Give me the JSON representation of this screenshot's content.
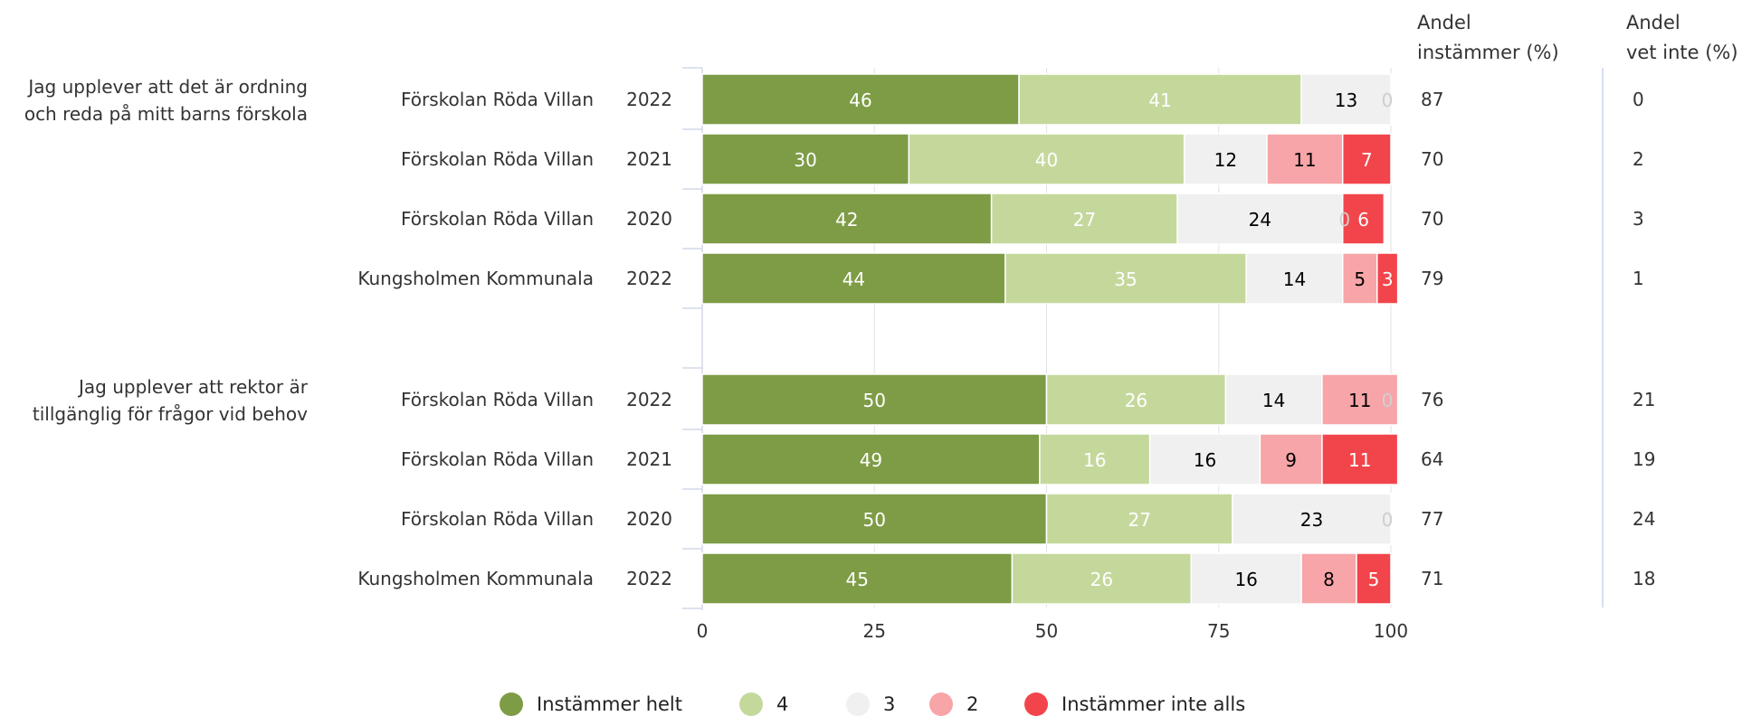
{
  "chart_data": {
    "type": "bar",
    "orientation": "horizontal",
    "stacked": true,
    "xlim": [
      0,
      100
    ],
    "x_ticks": [
      0,
      25,
      50,
      75,
      100
    ],
    "grid": true,
    "legend_position": "bottom",
    "column_headers": {
      "agree": [
        "Andel",
        "instämmer (%)"
      ],
      "dont_know": [
        "Andel",
        "vet inte (%)"
      ]
    },
    "legend": [
      {
        "label": "Instämmer helt",
        "color": "#7d9c45"
      },
      {
        "label": "4",
        "color": "#c5d89c"
      },
      {
        "label": "3",
        "color": "#f0f0f0"
      },
      {
        "label": "2",
        "color": "#f7a5a8"
      },
      {
        "label": "Instämmer inte alls",
        "color": "#f2454b"
      }
    ],
    "groups": [
      {
        "question": [
          "Jag upplever att det är ordning",
          "och reda på mitt barns förskola"
        ],
        "rows": [
          {
            "unit": "Förskolan Röda Villan",
            "year": "2022",
            "values": [
              46,
              41,
              13,
              0,
              0
            ],
            "agree": "87",
            "dont_know": "0"
          },
          {
            "unit": "Förskolan Röda Villan",
            "year": "2021",
            "values": [
              30,
              40,
              12,
              11,
              7
            ],
            "agree": "70",
            "dont_know": "2"
          },
          {
            "unit": "Förskolan Röda Villan",
            "year": "2020",
            "values": [
              42,
              27,
              24,
              0,
              6
            ],
            "agree": "70",
            "dont_know": "3"
          },
          {
            "unit": "Kungsholmen Kommunala",
            "year": "2022",
            "values": [
              44,
              35,
              14,
              5,
              3
            ],
            "agree": "79",
            "dont_know": "1"
          }
        ]
      },
      {
        "question": [
          "Jag upplever att rektor är",
          "tillgänglig för frågor vid behov"
        ],
        "rows": [
          {
            "unit": "Förskolan Röda Villan",
            "year": "2022",
            "values": [
              50,
              26,
              14,
              11,
              0
            ],
            "agree": "76",
            "dont_know": "21"
          },
          {
            "unit": "Förskolan Röda Villan",
            "year": "2021",
            "values": [
              49,
              16,
              16,
              9,
              11
            ],
            "agree": "64",
            "dont_know": "19"
          },
          {
            "unit": "Förskolan Röda Villan",
            "year": "2020",
            "values": [
              50,
              27,
              23,
              0,
              0
            ],
            "agree": "77",
            "dont_know": "24"
          },
          {
            "unit": "Kungsholmen Kommunala",
            "year": "2022",
            "values": [
              45,
              26,
              16,
              8,
              5
            ],
            "agree": "71",
            "dont_know": "18"
          }
        ]
      }
    ]
  }
}
